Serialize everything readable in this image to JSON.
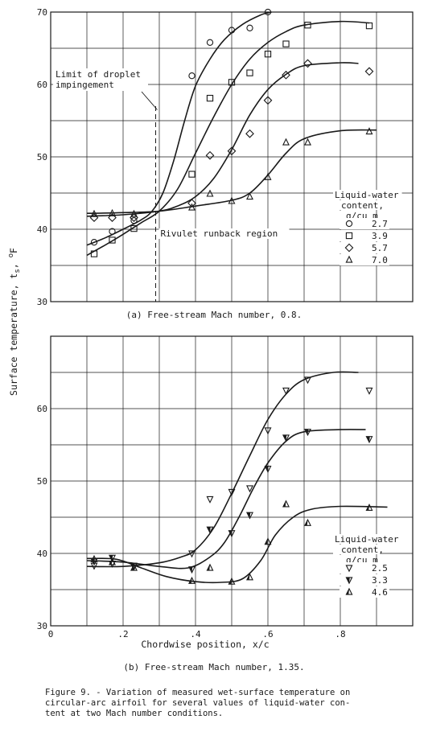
{
  "ylabel": "Surface temperature, t",
  "ylabel_sub": "s",
  "ylabel_unit": "F",
  "ylabel_unit_sup": "o",
  "xlabel": "Chordwise position, x/c",
  "figure_caption": [
    "Figure 9. - Variation of measured wet-surface temperature on",
    "circular-arc airfoil for several values of liquid-water con-",
    "tent at two Mach number conditions."
  ],
  "chart_data": [
    {
      "type": "scatter",
      "caption": "(a) Free-stream Mach number, 0.8.",
      "xlim": [
        0,
        1.0
      ],
      "ylim": [
        30,
        70
      ],
      "yticks": [
        30,
        40,
        50,
        60,
        70
      ],
      "ytick_labels": [
        "30",
        "40",
        "50",
        "60",
        "70"
      ],
      "grid": true,
      "legend_title": [
        "Liquid-water",
        "content,",
        "g/cu m"
      ],
      "legend_placement": "lower-right",
      "annotations": [
        "Limit of droplet",
        "impingement",
        "Rivulet runback region"
      ],
      "marker_colors": "#1a1a1a",
      "series": [
        {
          "name": "2.7",
          "marker": "circle",
          "points": [
            [
              0.12,
              38.2
            ],
            [
              0.17,
              39.7
            ],
            [
              0.23,
              41.2
            ],
            [
              0.39,
              61.2
            ],
            [
              0.44,
              65.8
            ],
            [
              0.5,
              67.5
            ],
            [
              0.55,
              67.8
            ],
            [
              0.6,
              70
            ]
          ],
          "curve": [
            [
              0.1,
              37.8
            ],
            [
              0.15,
              38.8
            ],
            [
              0.2,
              40
            ],
            [
              0.25,
              41.3
            ],
            [
              0.28,
              42.5
            ],
            [
              0.31,
              45
            ],
            [
              0.34,
              49.5
            ],
            [
              0.37,
              55
            ],
            [
              0.4,
              59.8
            ],
            [
              0.44,
              63.5
            ],
            [
              0.48,
              66.2
            ],
            [
              0.53,
              68.3
            ],
            [
              0.58,
              69.6
            ],
            [
              0.61,
              70
            ]
          ]
        },
        {
          "name": "3.9",
          "marker": "square",
          "points": [
            [
              0.12,
              36.6
            ],
            [
              0.17,
              38.5
            ],
            [
              0.23,
              40.1
            ],
            [
              0.39,
              47.6
            ],
            [
              0.44,
              58.1
            ],
            [
              0.5,
              60.3
            ],
            [
              0.55,
              61.6
            ],
            [
              0.6,
              64.2
            ],
            [
              0.65,
              65.6
            ],
            [
              0.71,
              68.2
            ],
            [
              0.88,
              68.1
            ]
          ],
          "curve": [
            [
              0.1,
              36.4
            ],
            [
              0.15,
              37.8
            ],
            [
              0.2,
              39.3
            ],
            [
              0.25,
              40.9
            ],
            [
              0.3,
              42.5
            ],
            [
              0.35,
              45.5
            ],
            [
              0.4,
              50.5
            ],
            [
              0.45,
              55.5
            ],
            [
              0.5,
              60
            ],
            [
              0.55,
              63.5
            ],
            [
              0.6,
              65.8
            ],
            [
              0.65,
              67.3
            ],
            [
              0.7,
              68.2
            ],
            [
              0.8,
              68.7
            ],
            [
              0.88,
              68.5
            ]
          ]
        },
        {
          "name": "5.7",
          "marker": "diamond",
          "points": [
            [
              0.12,
              41.6
            ],
            [
              0.17,
              41.6
            ],
            [
              0.23,
              41.6
            ],
            [
              0.39,
              43.6
            ],
            [
              0.44,
              50.2
            ],
            [
              0.5,
              50.8
            ],
            [
              0.55,
              53.2
            ],
            [
              0.6,
              57.8
            ],
            [
              0.65,
              61.3
            ],
            [
              0.71,
              62.9
            ],
            [
              0.88,
              61.8
            ]
          ],
          "curve": [
            [
              0.1,
              41.8
            ],
            [
              0.2,
              42
            ],
            [
              0.3,
              42.5
            ],
            [
              0.35,
              43.2
            ],
            [
              0.4,
              44.5
            ],
            [
              0.45,
              47
            ],
            [
              0.5,
              51
            ],
            [
              0.55,
              55.8
            ],
            [
              0.6,
              59.3
            ],
            [
              0.65,
              61.4
            ],
            [
              0.7,
              62.6
            ],
            [
              0.8,
              63
            ],
            [
              0.85,
              62.9
            ]
          ]
        },
        {
          "name": "7.0",
          "marker": "triangle",
          "points": [
            [
              0.12,
              42.1
            ],
            [
              0.17,
              42.2
            ],
            [
              0.23,
              42.1
            ],
            [
              0.39,
              43
            ],
            [
              0.44,
              44.9
            ],
            [
              0.5,
              43.9
            ],
            [
              0.55,
              44.5
            ],
            [
              0.6,
              47.2
            ],
            [
              0.65,
              52
            ],
            [
              0.71,
              52
            ],
            [
              0.88,
              53.5
            ]
          ],
          "curve": [
            [
              0.1,
              42.2
            ],
            [
              0.2,
              42.3
            ],
            [
              0.3,
              42.5
            ],
            [
              0.4,
              43.2
            ],
            [
              0.5,
              44
            ],
            [
              0.55,
              45
            ],
            [
              0.6,
              47.5
            ],
            [
              0.65,
              50.5
            ],
            [
              0.7,
              52.5
            ],
            [
              0.8,
              53.6
            ],
            [
              0.9,
              53.7
            ]
          ]
        }
      ]
    },
    {
      "type": "scatter",
      "caption": "(b) Free-stream Mach number, 1.35.",
      "xlim": [
        0,
        1.0
      ],
      "ylim": [
        30,
        70
      ],
      "yticks": [
        30,
        40,
        50,
        60
      ],
      "ytick_labels": [
        "30",
        "40",
        "50",
        "60"
      ],
      "xticks": [
        0,
        0.2,
        0.4,
        0.6,
        0.8
      ],
      "xtick_labels": [
        "0",
        ".2",
        ".4",
        ".6",
        ".8"
      ],
      "grid": true,
      "legend_title": [
        "Liquid-water",
        "content,",
        "g/cu m"
      ],
      "legend_placement": "lower-right",
      "marker_colors": "#1a1a1a",
      "series": [
        {
          "name": "2.5",
          "marker": "triangle-down",
          "points": [
            [
              0.12,
              38.3
            ],
            [
              0.17,
              38.6
            ],
            [
              0.23,
              38.2
            ],
            [
              0.39,
              40
            ],
            [
              0.44,
              47.5
            ],
            [
              0.5,
              48.5
            ],
            [
              0.55,
              49
            ],
            [
              0.6,
              57
            ],
            [
              0.65,
              62.5
            ],
            [
              0.71,
              64
            ],
            [
              0.88,
              62.5
            ]
          ],
          "curve": [
            [
              0.1,
              38.2
            ],
            [
              0.2,
              38.2
            ],
            [
              0.3,
              38.7
            ],
            [
              0.36,
              39.5
            ],
            [
              0.4,
              40.5
            ],
            [
              0.45,
              43.5
            ],
            [
              0.5,
              48.3
            ],
            [
              0.55,
              53.5
            ],
            [
              0.6,
              58.5
            ],
            [
              0.65,
              62
            ],
            [
              0.7,
              64
            ],
            [
              0.78,
              65
            ],
            [
              0.85,
              65
            ]
          ]
        },
        {
          "name": "3.3",
          "marker": "triangle-down-flagged",
          "points": [
            [
              0.12,
              38.9
            ],
            [
              0.17,
              39.4
            ],
            [
              0.23,
              38.3
            ],
            [
              0.39,
              37.8
            ],
            [
              0.44,
              43.3
            ],
            [
              0.5,
              42.8
            ],
            [
              0.55,
              45.3
            ],
            [
              0.6,
              51.7
            ],
            [
              0.65,
              56
            ],
            [
              0.71,
              56.8
            ],
            [
              0.88,
              55.8
            ]
          ],
          "curve": [
            [
              0.1,
              39
            ],
            [
              0.2,
              38.8
            ],
            [
              0.3,
              38.2
            ],
            [
              0.38,
              38
            ],
            [
              0.44,
              39.5
            ],
            [
              0.48,
              41.5
            ],
            [
              0.52,
              45
            ],
            [
              0.56,
              49
            ],
            [
              0.6,
              52.5
            ],
            [
              0.65,
              55.5
            ],
            [
              0.7,
              56.8
            ],
            [
              0.8,
              57.1
            ],
            [
              0.87,
              57.1
            ]
          ]
        },
        {
          "name": "4.6",
          "marker": "triangle-flagged",
          "points": [
            [
              0.12,
              39.2
            ],
            [
              0.17,
              38.8
            ],
            [
              0.23,
              38
            ],
            [
              0.39,
              36.2
            ],
            [
              0.44,
              38
            ],
            [
              0.5,
              36.1
            ],
            [
              0.55,
              36.7
            ],
            [
              0.6,
              41.6
            ],
            [
              0.65,
              46.8
            ],
            [
              0.71,
              44.2
            ],
            [
              0.88,
              46.3
            ]
          ],
          "curve": [
            [
              0.1,
              39.3
            ],
            [
              0.18,
              39.2
            ],
            [
              0.25,
              38
            ],
            [
              0.32,
              36.8
            ],
            [
              0.4,
              36.1
            ],
            [
              0.47,
              36
            ],
            [
              0.53,
              36.5
            ],
            [
              0.58,
              39
            ],
            [
              0.62,
              42.5
            ],
            [
              0.67,
              45
            ],
            [
              0.72,
              46.1
            ],
            [
              0.8,
              46.5
            ],
            [
              0.93,
              46.4
            ]
          ]
        }
      ]
    }
  ]
}
